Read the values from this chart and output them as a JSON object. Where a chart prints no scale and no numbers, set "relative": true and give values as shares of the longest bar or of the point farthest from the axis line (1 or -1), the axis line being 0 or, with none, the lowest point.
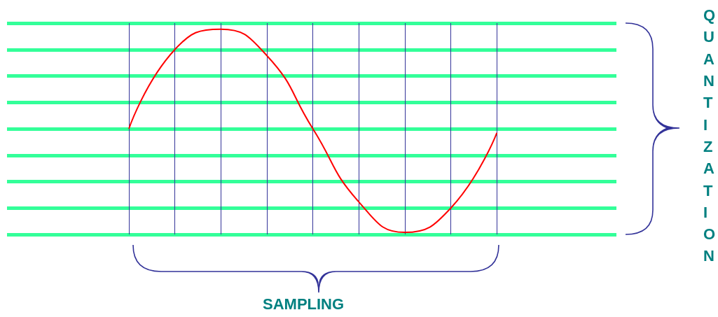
{
  "chart_data": {
    "type": "line",
    "xlabel": "SAMPLING",
    "ylabel": "QUANTIZATION",
    "categories": [
      null,
      null,
      null,
      null,
      null,
      null,
      null,
      null,
      null
    ],
    "values": [
      0.51,
      0.9,
      1,
      0.87,
      0.51,
      0.15,
      0,
      0.12,
      0.49
    ],
    "color": "#ff0000",
    "relative": true,
    "grid": "x",
    "tick_labels": false,
    "ref_lines": [
      {
        "axis": "y",
        "value": -0.01,
        "color": "#33ff99"
      },
      {
        "axis": "y",
        "value": 0.12,
        "color": "#33ff99"
      },
      {
        "axis": "y",
        "value": 0.25,
        "color": "#33ff99"
      },
      {
        "axis": "y",
        "value": 0.38,
        "color": "#33ff99"
      },
      {
        "axis": "y",
        "value": 0.51,
        "color": "#33ff99"
      },
      {
        "axis": "y",
        "value": 0.64,
        "color": "#33ff99"
      },
      {
        "axis": "y",
        "value": 0.77,
        "color": "#33ff99"
      },
      {
        "axis": "y",
        "value": 0.9,
        "color": "#33ff99"
      },
      {
        "axis": "y",
        "value": 1.03,
        "color": "#33ff99"
      }
    ]
  }
}
